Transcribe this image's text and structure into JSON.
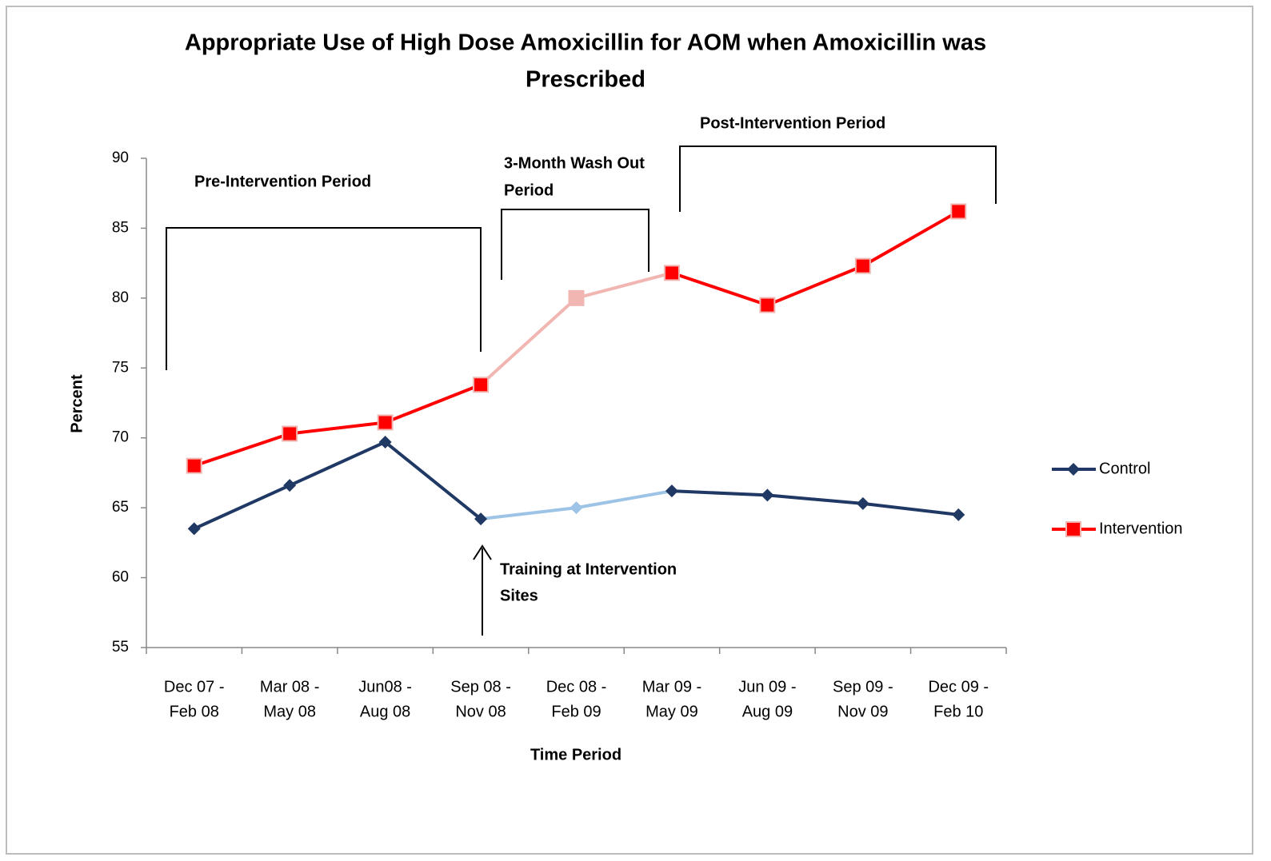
{
  "chart_data": {
    "type": "line",
    "title_lines": [
      "Appropriate Use of High Dose Amoxicillin for AOM when Amoxicillin was",
      "Prescribed"
    ],
    "x_label": "Time Period",
    "y_label": "Percent",
    "categories": [
      [
        "Dec 07 -",
        "Feb 08"
      ],
      [
        "Mar 08 -",
        "May 08"
      ],
      [
        "Jun08 -",
        "Aug 08"
      ],
      [
        "Sep 08 -",
        "Nov 08"
      ],
      [
        "Dec 08 -",
        "Feb 09"
      ],
      [
        "Mar 09 -",
        "May 09"
      ],
      [
        "Jun 09 -",
        "Aug 09"
      ],
      [
        "Sep 09 -",
        "Nov 09"
      ],
      [
        "Dec 09 -",
        "Feb 10"
      ]
    ],
    "series": [
      {
        "name": "Control",
        "color": "#1f3864",
        "faded_color": "#9dc3e6",
        "marker": "diamond",
        "values": [
          63.5,
          66.6,
          69.7,
          64.2,
          65.0,
          66.2,
          65.9,
          65.3,
          64.5
        ]
      },
      {
        "name": "Intervention",
        "color": "#ff0000",
        "faded_color": "#f2b6b2",
        "marker": "square",
        "values": [
          68.0,
          70.3,
          71.1,
          73.8,
          80.0,
          81.8,
          79.5,
          82.3,
          86.2
        ]
      }
    ],
    "faded_range": [
      3,
      5
    ],
    "ylim": [
      55,
      90
    ],
    "yticks": [
      55,
      60,
      65,
      70,
      75,
      80,
      85,
      90
    ],
    "grid": false,
    "legend": "right",
    "annotations": [
      {
        "lines": [
          "Pre-Intervention Period"
        ]
      },
      {
        "lines": [
          "3-Month Wash Out",
          "Period"
        ]
      },
      {
        "lines": [
          "Post-Intervention Period"
        ]
      },
      {
        "lines": [
          "Training at Intervention",
          "Sites"
        ]
      }
    ]
  }
}
